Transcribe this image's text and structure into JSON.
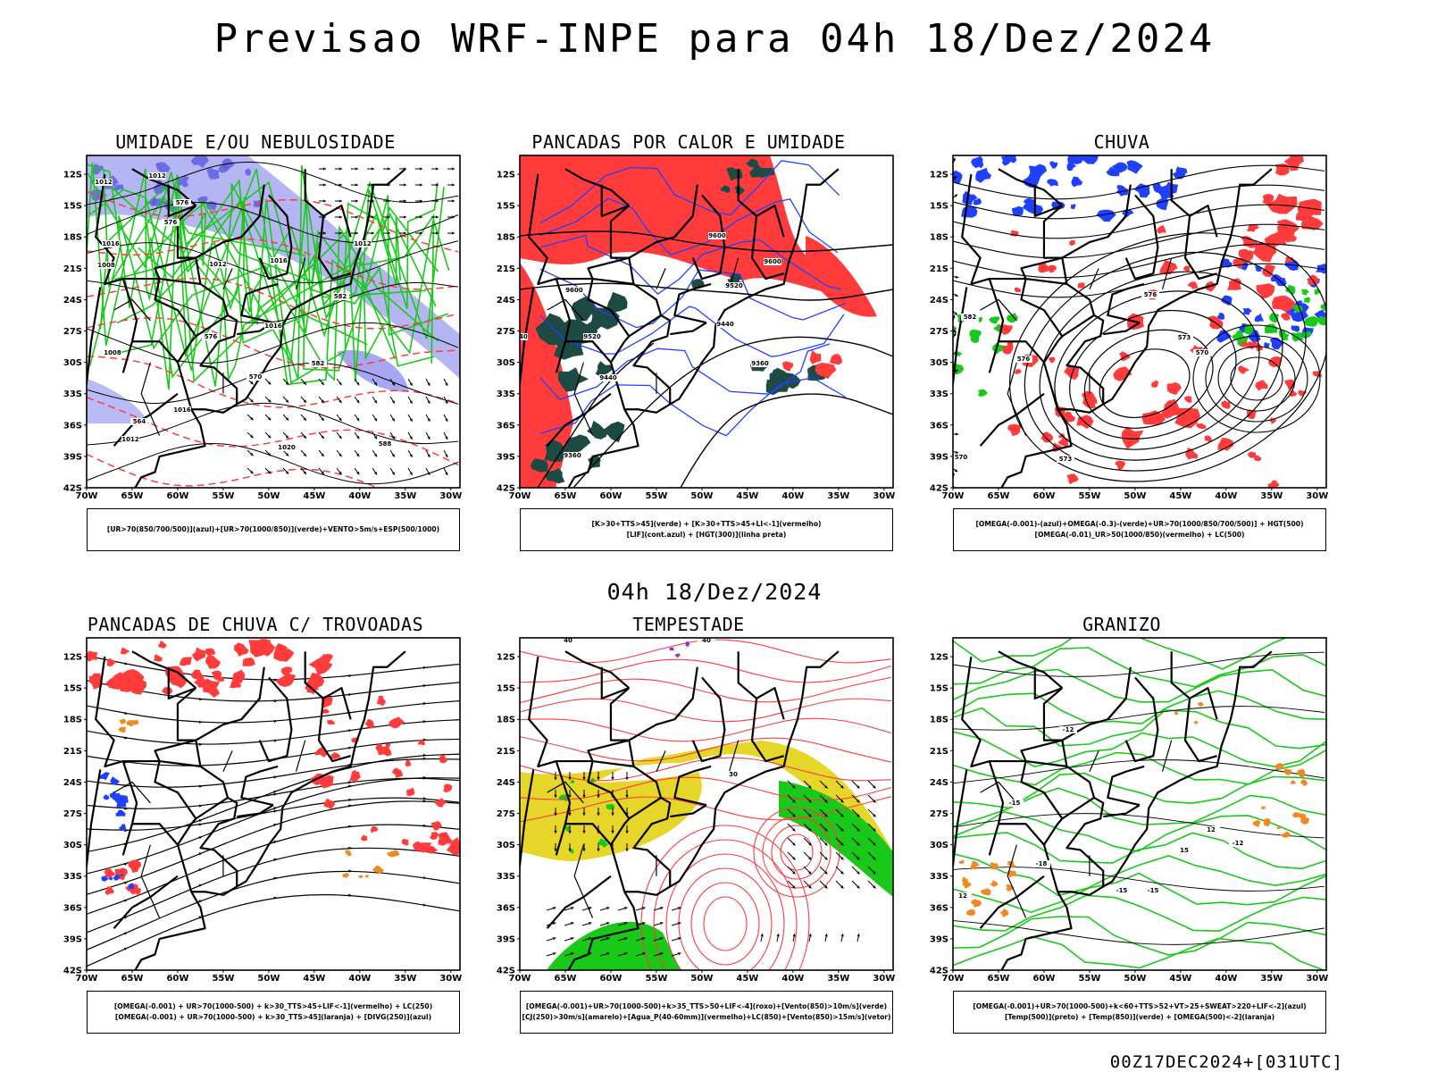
{
  "main_title": "Previsao WRF-INPE  para 04h 18/Dez/2024",
  "mid_title": "04h 18/Dez/2024",
  "footer": "00Z17DEC2024+[031UTC]",
  "axes": {
    "lat_labels": [
      "12S",
      "15S",
      "18S",
      "21S",
      "24S",
      "27S",
      "30S",
      "33S",
      "36S",
      "39S",
      "42S"
    ],
    "lon_labels": [
      "70W",
      "65W",
      "60W",
      "55W",
      "50W",
      "45W",
      "40W",
      "35W",
      "30W"
    ]
  },
  "colors": {
    "red": "#ff3b3b",
    "green": "#19c919",
    "blue": "#2040ff",
    "lavender": "#9c9cf0",
    "darkgreen": "#1e4a44",
    "yellow": "#e6d62a",
    "orange": "#ee8a22",
    "black": "#000000"
  },
  "panels": [
    {
      "title": "UMIDADE E/OU NEBULOSIDADE",
      "legend": [
        "[UR>70(850/700/500)](azul)+[UR>70(1000/850)](verde)+VENTO>5m/s+ESP(500/1000)"
      ],
      "contour_labels": [
        "1012",
        "1012",
        "1016",
        "1012",
        "1016",
        "1008",
        "1016",
        "1012",
        "1008",
        "1016",
        "1012",
        "1020",
        "576",
        "576",
        "576",
        "570",
        "582",
        "582",
        "564",
        "588"
      ]
    },
    {
      "title": "PANCADAS POR CALOR E UMIDADE",
      "legend": [
        "[K>30+TTS>45](verde) + [K>30+TTS>45+LI<-1](vermelho)",
        "[LIF](cont.azul) + [HGT(300)](linha preta)"
      ],
      "contour_labels": [
        "9600",
        "9600",
        "9600",
        "9520",
        "9520",
        "9600",
        "9520",
        "9440",
        "9440",
        "9440",
        "9360",
        "9360",
        "9360"
      ]
    },
    {
      "title": "CHUVA",
      "legend": [
        "[OMEGA(-0.001)-(azul)+OMEGA(-0.3)-(verde)+UR>70(1000/850/700/500)] + HGT(500)",
        "[OMEGA(-0.01)_UR>50(1000/850)(vermelho) + LC(500)"
      ],
      "contour_labels": [
        "582",
        "576",
        "576",
        "573",
        "570",
        "573",
        "570"
      ]
    },
    {
      "title": "PANCADAS DE CHUVA C/ TROVOADAS",
      "legend": [
        "[OMEGA(-0.001) + UR>70(1000-500) + k>30_TTS>45+LIF<-1](vermelho) + LC(250)",
        "[OMEGA(-0.001) + UR>70(1000-500) + k>30_TTS>45](laranja) + [DIVG(250)](azul)"
      ],
      "contour_labels": []
    },
    {
      "title": "TEMPESTADE",
      "legend": [
        "[OMEGA(-0.001)+UR>70(1000-500)+k>35_TTS>50+LIF<-4](roxo)+[Vento(850)>10m/s](verde)",
        "[CJ(250)>30m/s](amarelo)+[Agua_P(40-60mm)](vermelho)+LC(850)+[Vento(850)>15m/s](vetor)"
      ],
      "contour_labels": [
        "40",
        "40",
        "30"
      ]
    },
    {
      "title": "GRANIZO",
      "legend": [
        "[OMEGA(-0.001)+UR>70(1000-500)+k<60+TTS>52+VT>25+SWEAT>220+LIF<-2](azul)",
        "[Temp(500)](preto) + [Temp(850)](verde) + [OMEGA(500)<-2](laranja)"
      ],
      "contour_labels": [
        "-12",
        "-15",
        "-18",
        "-12",
        "-15",
        "-15",
        "12",
        "15",
        "12"
      ]
    }
  ]
}
